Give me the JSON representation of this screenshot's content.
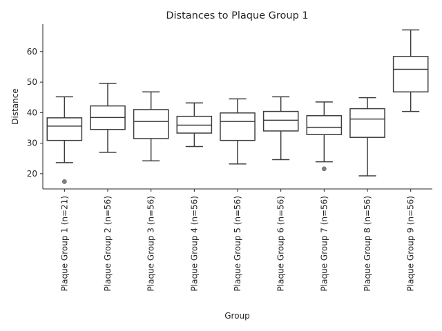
{
  "chart_data": {
    "type": "box",
    "title": "Distances to Plaque Group 1",
    "xlabel": "Group",
    "ylabel": "Distance",
    "ylim": [
      15,
      69
    ],
    "yticks": [
      20,
      30,
      40,
      50,
      60
    ],
    "grid": false,
    "categories": [
      "Plaque Group 1 (n=21)",
      "Plaque Group 2 (n=56)",
      "Plaque Group 3 (n=56)",
      "Plaque Group 4 (n=56)",
      "Plaque Group 5 (n=56)",
      "Plaque Group 6 (n=56)",
      "Plaque Group 7 (n=56)",
      "Plaque Group 8 (n=56)",
      "Plaque Group 9 (n=56)"
    ],
    "boxes": [
      {
        "whislo": 23.6,
        "q1": 30.9,
        "med": 35.6,
        "q3": 38.3,
        "whishi": 45.2,
        "fliers": [
          17.4
        ]
      },
      {
        "whislo": 27.0,
        "q1": 34.5,
        "med": 38.4,
        "q3": 42.2,
        "whishi": 49.6,
        "fliers": []
      },
      {
        "whislo": 24.2,
        "q1": 31.5,
        "med": 37.1,
        "q3": 41.0,
        "whishi": 46.8,
        "fliers": []
      },
      {
        "whislo": 28.9,
        "q1": 33.3,
        "med": 35.9,
        "q3": 38.8,
        "whishi": 43.2,
        "fliers": []
      },
      {
        "whislo": 23.2,
        "q1": 30.9,
        "med": 37.1,
        "q3": 39.9,
        "whishi": 44.5,
        "fliers": []
      },
      {
        "whislo": 24.6,
        "q1": 34.0,
        "med": 37.5,
        "q3": 40.4,
        "whishi": 45.2,
        "fliers": []
      },
      {
        "whislo": 23.9,
        "q1": 32.8,
        "med": 35.2,
        "q3": 39.0,
        "whishi": 43.5,
        "fliers": [
          21.6
        ]
      },
      {
        "whislo": 19.3,
        "q1": 31.9,
        "med": 37.9,
        "q3": 41.3,
        "whishi": 44.9,
        "fliers": []
      },
      {
        "whislo": 40.4,
        "q1": 46.8,
        "med": 54.2,
        "q3": 58.4,
        "whishi": 67.1,
        "fliers": []
      }
    ]
  }
}
